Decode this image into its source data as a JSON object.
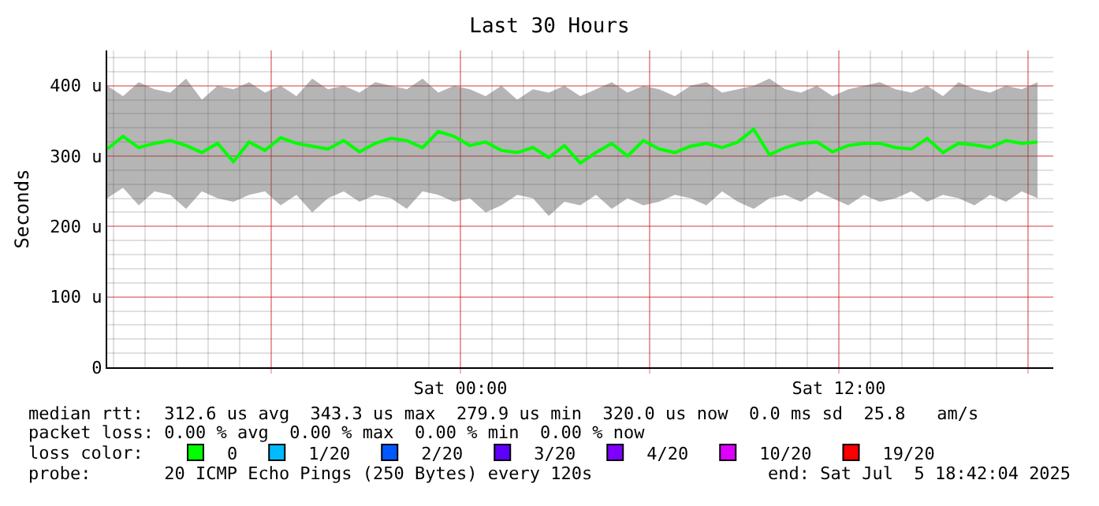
{
  "chart_data": {
    "type": "line",
    "title": "Last 30 Hours",
    "ylabel": "Seconds",
    "xlim": [
      "2025-07-04T12:48",
      "2025-07-05T18:48"
    ],
    "xticks": [
      {
        "value": "2025-07-04T18:00",
        "label": null
      },
      {
        "value": "2025-07-05T00:00",
        "label": "Sat 00:00"
      },
      {
        "value": "2025-07-05T06:00",
        "label": null
      },
      {
        "value": "2025-07-05T12:00",
        "label": "Sat 12:00"
      },
      {
        "value": "2025-07-05T18:00",
        "label": null
      }
    ],
    "ylim": [
      0,
      450
    ],
    "yticks": [
      0,
      {
        "value": 100,
        "label": "100 u"
      },
      {
        "value": 200,
        "label": "200 u"
      },
      {
        "value": 300,
        "label": "300 u"
      },
      {
        "value": 400,
        "label": "400 u"
      }
    ],
    "grid": true,
    "legend": "bottom",
    "marker": "none",
    "line_style": "solid",
    "series": [
      {
        "name": "0",
        "color": "#00ff00",
        "x": [
          "2025-07-04T12:48",
          "2025-07-04T13:18",
          "2025-07-04T13:48",
          "2025-07-04T14:18",
          "2025-07-04T14:48",
          "2025-07-04T15:18",
          "2025-07-04T15:48",
          "2025-07-04T16:18",
          "2025-07-04T16:48",
          "2025-07-04T17:18",
          "2025-07-04T17:48",
          "2025-07-04T18:18",
          "2025-07-04T18:48",
          "2025-07-04T19:18",
          "2025-07-04T19:48",
          "2025-07-04T20:18",
          "2025-07-04T20:48",
          "2025-07-04T21:18",
          "2025-07-04T21:48",
          "2025-07-04T22:18",
          "2025-07-04T22:48",
          "2025-07-04T23:18",
          "2025-07-04T23:48",
          "2025-07-05T00:18",
          "2025-07-05T00:48",
          "2025-07-05T01:18",
          "2025-07-05T01:48",
          "2025-07-05T02:18",
          "2025-07-05T02:48",
          "2025-07-05T03:18",
          "2025-07-05T03:48",
          "2025-07-05T04:18",
          "2025-07-05T04:48",
          "2025-07-05T05:18",
          "2025-07-05T05:48",
          "2025-07-05T06:18",
          "2025-07-05T06:48",
          "2025-07-05T07:18",
          "2025-07-05T07:48",
          "2025-07-05T08:18",
          "2025-07-05T08:48",
          "2025-07-05T09:18",
          "2025-07-05T09:48",
          "2025-07-05T10:18",
          "2025-07-05T10:48",
          "2025-07-05T11:18",
          "2025-07-05T11:48",
          "2025-07-05T12:18",
          "2025-07-05T12:48",
          "2025-07-05T13:18",
          "2025-07-05T13:48",
          "2025-07-05T14:18",
          "2025-07-05T14:48",
          "2025-07-05T15:18",
          "2025-07-05T15:48",
          "2025-07-05T16:18",
          "2025-07-05T16:48",
          "2025-07-05T17:18",
          "2025-07-05T17:48",
          "2025-07-05T18:18"
        ],
        "values": [
          310,
          328,
          312,
          318,
          322,
          315,
          305,
          318,
          292,
          320,
          308,
          326,
          318,
          314,
          310,
          322,
          306,
          318,
          325,
          322,
          312,
          335,
          328,
          315,
          320,
          308,
          305,
          312,
          298,
          315,
          290,
          305,
          318,
          300,
          322,
          310,
          305,
          314,
          318,
          312,
          320,
          338,
          302,
          312,
          318,
          320,
          306,
          315,
          318,
          318,
          312,
          310,
          325,
          305,
          318,
          316,
          312,
          322,
          318,
          320
        ],
        "upper": [
          400,
          385,
          405,
          395,
          390,
          410,
          380,
          400,
          395,
          405,
          390,
          400,
          385,
          410,
          395,
          400,
          390,
          405,
          400,
          395,
          410,
          390,
          400,
          395,
          385,
          400,
          380,
          395,
          390,
          400,
          385,
          395,
          405,
          390,
          400,
          395,
          385,
          400,
          405,
          390,
          395,
          400,
          410,
          395,
          390,
          400,
          385,
          395,
          400,
          405,
          395,
          390,
          400,
          385,
          405,
          395,
          390,
          400,
          395,
          405
        ],
        "lower": [
          240,
          255,
          230,
          250,
          245,
          225,
          250,
          240,
          235,
          245,
          250,
          230,
          245,
          220,
          240,
          250,
          235,
          245,
          240,
          225,
          250,
          245,
          235,
          240,
          220,
          230,
          245,
          240,
          215,
          235,
          230,
          245,
          225,
          240,
          230,
          235,
          245,
          240,
          230,
          250,
          235,
          225,
          240,
          245,
          235,
          250,
          240,
          230,
          245,
          235,
          240,
          250,
          235,
          245,
          240,
          230,
          245,
          235,
          250,
          240
        ]
      },
      {
        "name": "1/20",
        "color": "#00bbff"
      },
      {
        "name": "2/20",
        "color": "#0059ff"
      },
      {
        "name": "3/20",
        "color": "#5e00ff"
      },
      {
        "name": "4/20",
        "color": "#7e00ff"
      },
      {
        "name": "10/20",
        "color": "#dd00ff"
      },
      {
        "name": "19/20",
        "color": "#ff0000"
      }
    ],
    "annotations": [
      "median rtt:  312.6 us avg  343.3 us max  279.9 us min  320.0 us now  0.0 ms sd  25.8   am/s",
      "packet loss: 0.00 % avg  0.00 % max  0.00 % min  0.00 % now",
      "loss color:",
      "probe:       20 ICMP Echo Pings (250 Bytes) every 120s",
      "end: Sat Jul  5 18:42:04 2025"
    ]
  }
}
